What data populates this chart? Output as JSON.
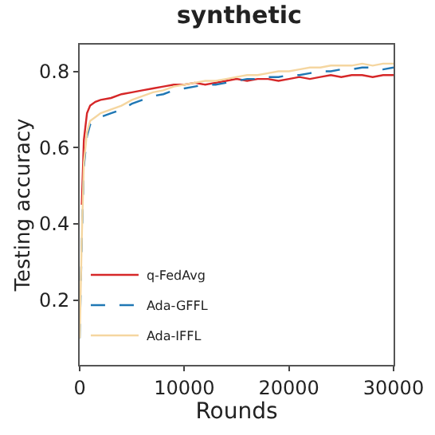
{
  "chart_data": {
    "type": "line",
    "title": "synthetic",
    "xlabel": "Rounds",
    "ylabel": "Testing accuracy",
    "x": [
      0,
      200,
      400,
      700,
      1000,
      1500,
      2000,
      3000,
      4000,
      5000,
      6000,
      7000,
      8000,
      9000,
      10000,
      11000,
      12000,
      13000,
      14000,
      15000,
      16000,
      17000,
      18000,
      19000,
      20000,
      21000,
      22000,
      23000,
      24000,
      25000,
      26000,
      27000,
      28000,
      29000,
      30000
    ],
    "series": [
      {
        "name": "q-FedAvg",
        "color": "#d62728",
        "line_style": "solid",
        "values": [
          null,
          0.45,
          0.62,
          0.69,
          0.71,
          0.72,
          0.725,
          0.73,
          0.74,
          0.745,
          0.75,
          0.755,
          0.76,
          0.765,
          0.765,
          0.77,
          0.765,
          0.77,
          0.775,
          0.78,
          0.775,
          0.78,
          0.78,
          0.775,
          0.78,
          0.785,
          0.78,
          0.785,
          0.79,
          0.785,
          0.79,
          0.79,
          0.785,
          0.79,
          0.79
        ]
      },
      {
        "name": "Ada-GFFL",
        "color": "#1f77b4",
        "line_style": "dashed",
        "values": [
          0.1,
          0.35,
          0.55,
          0.63,
          0.66,
          0.67,
          0.68,
          0.69,
          0.7,
          0.715,
          0.725,
          0.735,
          0.74,
          0.75,
          0.755,
          0.76,
          0.765,
          0.765,
          0.77,
          0.775,
          0.78,
          0.78,
          0.785,
          0.785,
          0.79,
          0.79,
          0.795,
          0.8,
          0.8,
          0.805,
          0.805,
          0.81,
          0.81,
          0.805,
          0.81
        ]
      },
      {
        "name": "Ada-IFFL",
        "color": "#f5d6a0",
        "line_style": "solid",
        "values": [
          0.1,
          0.36,
          0.56,
          0.64,
          0.67,
          0.68,
          0.69,
          0.7,
          0.71,
          0.725,
          0.735,
          0.745,
          0.75,
          0.76,
          0.765,
          0.77,
          0.775,
          0.775,
          0.78,
          0.785,
          0.79,
          0.79,
          0.795,
          0.8,
          0.8,
          0.805,
          0.81,
          0.81,
          0.815,
          0.815,
          0.815,
          0.82,
          0.815,
          0.82,
          0.82
        ]
      }
    ],
    "xlim": [
      0,
      30000
    ],
    "xticks": [
      0,
      10000,
      20000,
      30000
    ],
    "ylim": [
      0.03,
      0.87
    ],
    "yticks": [
      0.2,
      0.4,
      0.6,
      0.8
    ],
    "grid": false,
    "legend": "bottom left"
  }
}
